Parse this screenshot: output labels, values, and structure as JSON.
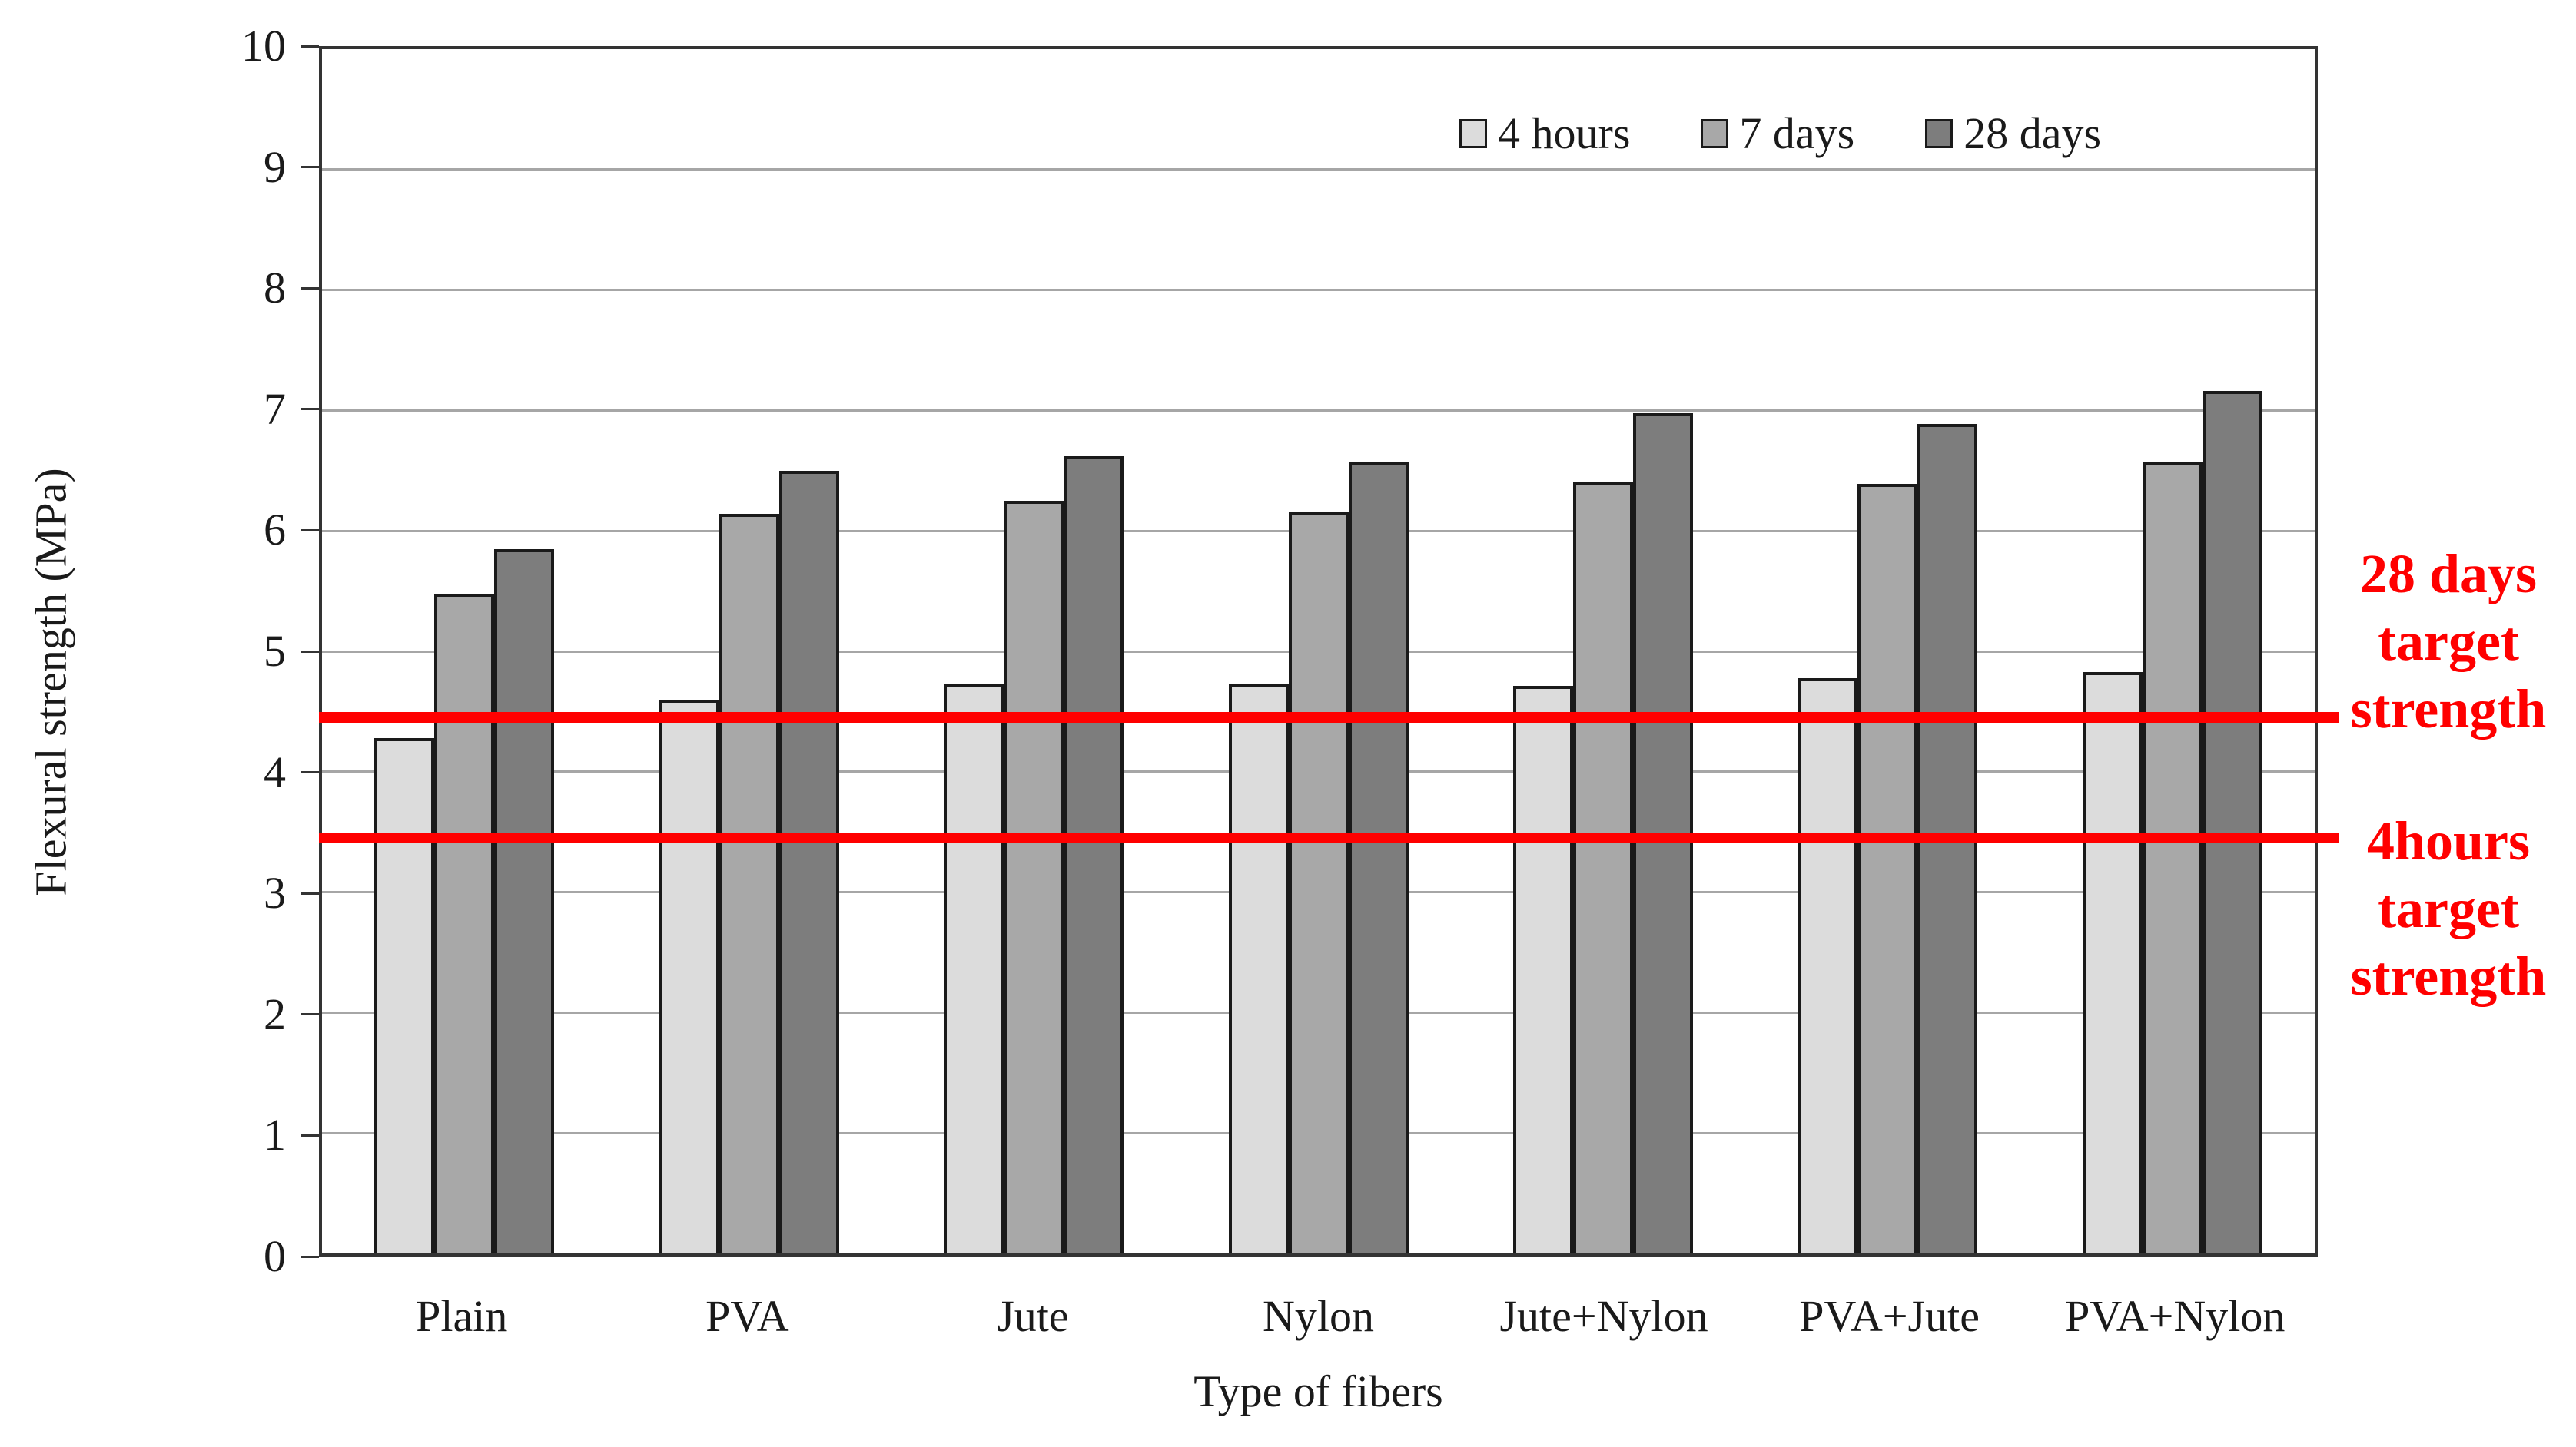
{
  "chart_data": {
    "type": "bar",
    "title": "",
    "xlabel": "Type of fibers",
    "ylabel": "Flexural strength (MPa)",
    "categories": [
      "Plain",
      "PVA",
      "Jute",
      "Nylon",
      "Jute+Nylon",
      "PVA+Jute",
      "PVA+Nylon"
    ],
    "series": [
      {
        "name": "4 hours",
        "color": "#dcdcdc",
        "values": [
          4.28,
          4.6,
          4.73,
          4.73,
          4.71,
          4.78,
          4.83
        ]
      },
      {
        "name": "7 days",
        "color": "#a8a8a8",
        "values": [
          5.48,
          6.14,
          6.25,
          6.16,
          6.41,
          6.39,
          6.57
        ]
      },
      {
        "name": "28 days",
        "color": "#7d7d7d",
        "values": [
          5.85,
          6.5,
          6.62,
          6.57,
          6.98,
          6.89,
          7.16
        ]
      }
    ],
    "ylim": [
      0,
      10
    ],
    "yticks": [
      0,
      1,
      2,
      3,
      4,
      5,
      6,
      7,
      8,
      9,
      10
    ],
    "grid": "horizontal",
    "legend_position": "top-right-inside",
    "bar_border_color": "#1a1a1a",
    "gridline_color": "#a6a6a6",
    "target_lines": [
      {
        "value": 4.45,
        "color": "#ff0000",
        "label": "28 days\ntarget\nstrength"
      },
      {
        "value": 3.45,
        "color": "#ff0000",
        "label": "4hours\ntarget\nstrength"
      }
    ]
  }
}
